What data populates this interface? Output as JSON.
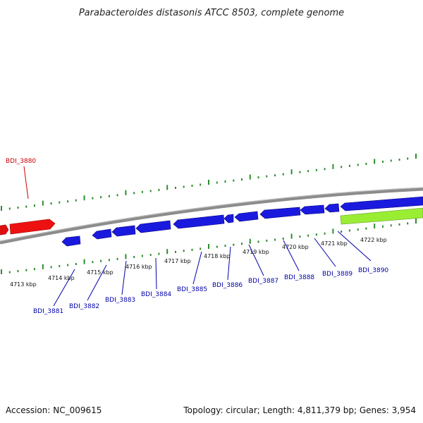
{
  "header": {
    "title": "Parabacteroides distasonis ATCC 8503, complete genome"
  },
  "footer": {
    "accession": "Accession: NC_009615",
    "summary": "Topology: circular; Length: 4,811,379 bp; Genes: 3,954"
  },
  "colors": {
    "backbone": "#7a7a7a",
    "tick": "#2e8b2e",
    "forward_gene": "#ee1111",
    "reverse_gene": "#1a1adf",
    "rna_gene": "#99ee33",
    "reverse_label": "#0000aa",
    "forward_label": "#cc0000"
  },
  "scale_labels": [
    "4713 kbp",
    "4714 kbp",
    "4715 kbp",
    "4716 kbp",
    "4717 kbp",
    "4718 kbp",
    "4719 kbp",
    "4720 kbp",
    "4721 kbp",
    "4722 kbp"
  ],
  "gene_labels": {
    "forward": [
      "BDI_3880"
    ],
    "reverse": [
      "BDI_3881",
      "BDI_3882",
      "BDI_3883",
      "BDI_3884",
      "BDI_3885",
      "BDI_3886",
      "BDI_3887",
      "BDI_3888",
      "BDI_3889",
      "BDI_3890"
    ]
  }
}
